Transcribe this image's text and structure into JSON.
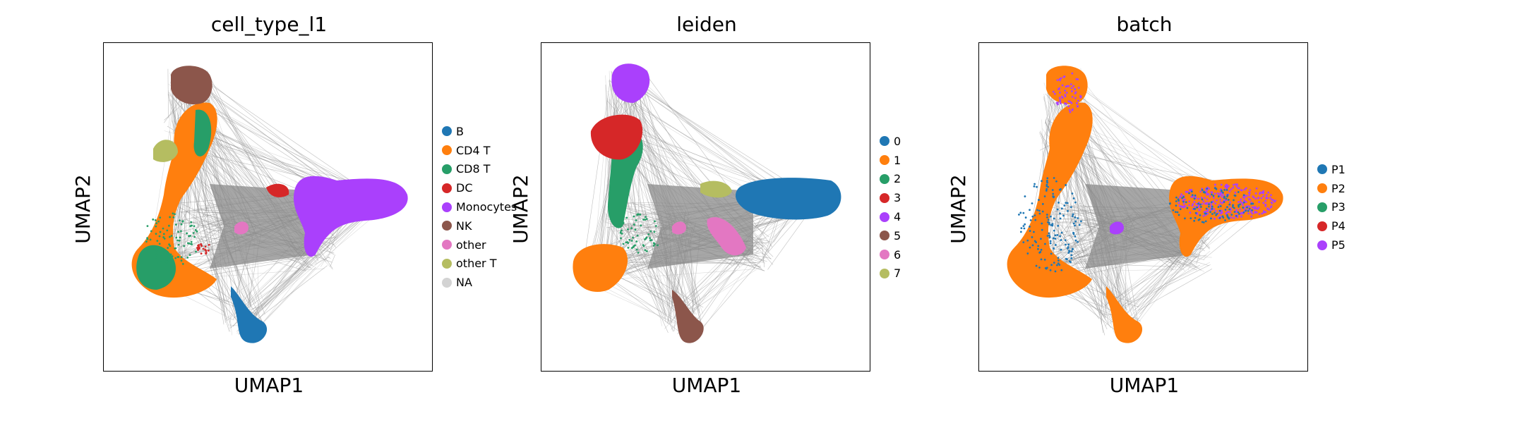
{
  "chart_data": [
    {
      "type": "scatter",
      "title": "cell_type_l1",
      "xlabel": "UMAP1",
      "ylabel": "UMAP2",
      "grid": false,
      "legend_position": "right",
      "legend": [
        {
          "label": "B",
          "color": "#1f77b4"
        },
        {
          "label": "CD4 T",
          "color": "#ff7f0e"
        },
        {
          "label": "CD8 T",
          "color": "#279e68"
        },
        {
          "label": "DC",
          "color": "#d62728"
        },
        {
          "label": "Monocytes",
          "color": "#aa40fc"
        },
        {
          "label": "NK",
          "color": "#8c564b"
        },
        {
          "label": "other",
          "color": "#e377c2"
        },
        {
          "label": "other T",
          "color": "#b5bd61"
        },
        {
          "label": "NA",
          "color": "#d3d3d3"
        }
      ]
    },
    {
      "type": "scatter",
      "title": "leiden",
      "xlabel": "UMAP1",
      "ylabel": "UMAP2",
      "grid": false,
      "legend_position": "right",
      "legend": [
        {
          "label": "0",
          "color": "#1f77b4"
        },
        {
          "label": "1",
          "color": "#ff7f0e"
        },
        {
          "label": "2",
          "color": "#279e68"
        },
        {
          "label": "3",
          "color": "#d62728"
        },
        {
          "label": "4",
          "color": "#aa40fc"
        },
        {
          "label": "5",
          "color": "#8c564b"
        },
        {
          "label": "6",
          "color": "#e377c2"
        },
        {
          "label": "7",
          "color": "#b5bd61"
        }
      ]
    },
    {
      "type": "scatter",
      "title": "batch",
      "xlabel": "UMAP1",
      "ylabel": "UMAP2",
      "grid": false,
      "legend_position": "right",
      "legend": [
        {
          "label": "P1",
          "color": "#1f77b4"
        },
        {
          "label": "P2",
          "color": "#ff7f0e"
        },
        {
          "label": "P3",
          "color": "#279e68"
        },
        {
          "label": "P4",
          "color": "#d62728"
        },
        {
          "label": "P5",
          "color": "#aa40fc"
        }
      ]
    }
  ],
  "colors": {
    "edges": "#808080",
    "edges_light": "#b8b8b8"
  }
}
